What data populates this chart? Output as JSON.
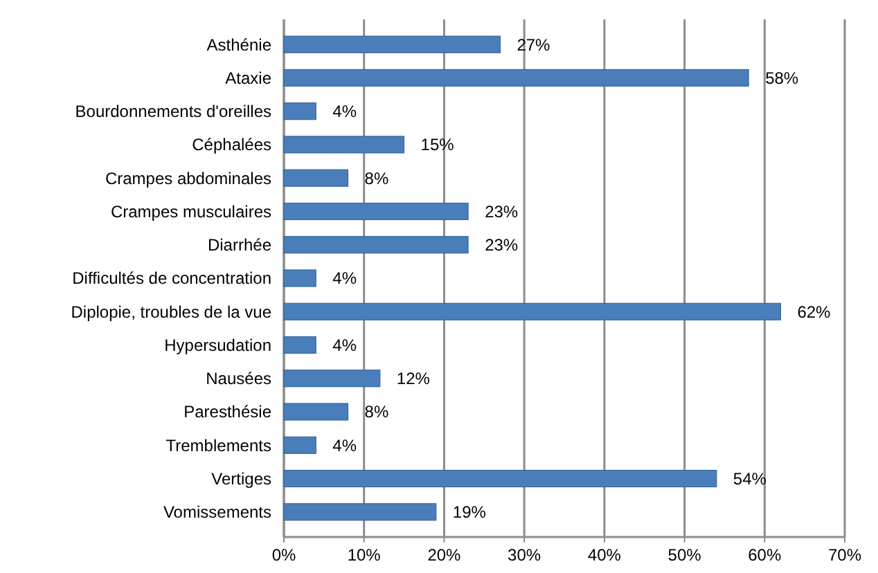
{
  "chart_data": {
    "type": "bar",
    "orientation": "horizontal",
    "categories": [
      "Asthénie",
      "Ataxie",
      "Bourdonnements d'oreilles",
      "Céphalées",
      "Crampes abdominales",
      "Crampes musculaires",
      "Diarrhée",
      "Difficultés de concentration",
      "Diplopie, troubles de la vue",
      "Hypersudation",
      "Nausées",
      "Paresthésie",
      "Tremblements",
      "Vertiges",
      "Vomissements"
    ],
    "values": [
      27,
      58,
      4,
      15,
      8,
      23,
      23,
      4,
      62,
      4,
      12,
      8,
      4,
      54,
      19
    ],
    "value_labels": [
      "27%",
      "58%",
      "4%",
      "15%",
      "8%",
      "23%",
      "23%",
      "4%",
      "62%",
      "4%",
      "12%",
      "8%",
      "4%",
      "54%",
      "19%"
    ],
    "color": "#4a7ebb",
    "xlim": [
      0,
      70
    ],
    "xticks": [
      {
        "value": 0,
        "label": "0%"
      },
      {
        "value": 10,
        "label": "10%"
      },
      {
        "value": 20,
        "label": "20%"
      },
      {
        "value": 30,
        "label": "30%"
      },
      {
        "value": 40,
        "label": "40%"
      },
      {
        "value": 50,
        "label": "50%"
      },
      {
        "value": 60,
        "label": "60%"
      },
      {
        "value": 70,
        "label": "70%"
      }
    ],
    "grid": "x"
  }
}
